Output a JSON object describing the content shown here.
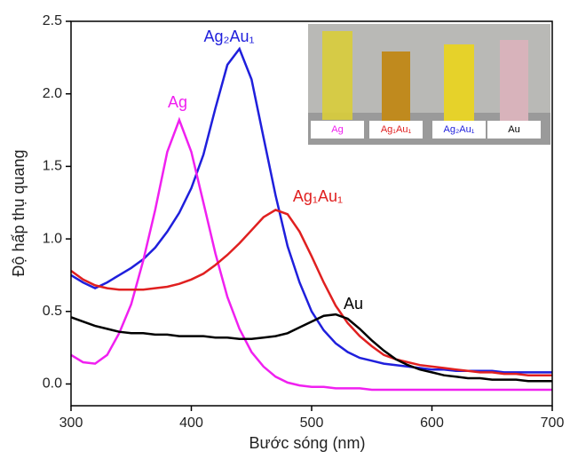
{
  "chart_data": {
    "type": "line",
    "x_label": "Bước sóng (nm)",
    "y_label": "Độ hấp thụ quang",
    "x": [
      300,
      310,
      320,
      330,
      340,
      350,
      360,
      370,
      380,
      390,
      400,
      410,
      420,
      430,
      440,
      450,
      460,
      470,
      480,
      490,
      500,
      510,
      520,
      530,
      540,
      550,
      560,
      570,
      580,
      590,
      600,
      610,
      620,
      630,
      640,
      650,
      660,
      670,
      680,
      690,
      700
    ],
    "series": [
      {
        "name": "Ag₂Au₁",
        "color": "#1f1fdc",
        "values": [
          0.75,
          0.7,
          0.66,
          0.7,
          0.75,
          0.8,
          0.86,
          0.94,
          1.05,
          1.18,
          1.35,
          1.58,
          1.9,
          2.2,
          2.31,
          2.1,
          1.7,
          1.3,
          0.95,
          0.7,
          0.5,
          0.37,
          0.28,
          0.22,
          0.18,
          0.16,
          0.14,
          0.13,
          0.12,
          0.11,
          0.1,
          0.1,
          0.09,
          0.09,
          0.09,
          0.09,
          0.08,
          0.08,
          0.08,
          0.08,
          0.08
        ]
      },
      {
        "name": "Ag",
        "color": "#f020f0",
        "values": [
          0.2,
          0.15,
          0.14,
          0.2,
          0.35,
          0.55,
          0.85,
          1.2,
          1.6,
          1.82,
          1.6,
          1.25,
          0.9,
          0.6,
          0.38,
          0.22,
          0.12,
          0.05,
          0.01,
          -0.01,
          -0.02,
          -0.02,
          -0.03,
          -0.03,
          -0.03,
          -0.04,
          -0.04,
          -0.04,
          -0.04,
          -0.04,
          -0.04,
          -0.04,
          -0.04,
          -0.04,
          -0.04,
          -0.04,
          -0.04,
          -0.04,
          -0.04,
          -0.04,
          -0.04
        ]
      },
      {
        "name": "Ag₁Au₁",
        "color": "#e02020",
        "values": [
          0.78,
          0.72,
          0.68,
          0.66,
          0.65,
          0.65,
          0.65,
          0.66,
          0.67,
          0.69,
          0.72,
          0.76,
          0.82,
          0.89,
          0.97,
          1.06,
          1.15,
          1.2,
          1.17,
          1.05,
          0.88,
          0.7,
          0.54,
          0.42,
          0.33,
          0.26,
          0.2,
          0.17,
          0.15,
          0.13,
          0.12,
          0.11,
          0.1,
          0.09,
          0.08,
          0.08,
          0.07,
          0.07,
          0.06,
          0.06,
          0.06
        ]
      },
      {
        "name": "Au",
        "color": "#000000",
        "values": [
          0.46,
          0.43,
          0.4,
          0.38,
          0.36,
          0.35,
          0.35,
          0.34,
          0.34,
          0.33,
          0.33,
          0.33,
          0.32,
          0.32,
          0.31,
          0.31,
          0.32,
          0.33,
          0.35,
          0.39,
          0.43,
          0.47,
          0.48,
          0.45,
          0.38,
          0.3,
          0.23,
          0.17,
          0.13,
          0.1,
          0.08,
          0.06,
          0.05,
          0.04,
          0.04,
          0.03,
          0.03,
          0.03,
          0.02,
          0.02,
          0.02
        ]
      }
    ],
    "xlim": [
      300,
      700
    ],
    "xticks": [
      300,
      400,
      500,
      600,
      700
    ],
    "ylim": [
      -0.15,
      2.5
    ],
    "yticks": [
      {
        "value": 0,
        "label": "0.0"
      },
      0.5,
      {
        "value": 1,
        "label": "1.0"
      },
      1.5,
      {
        "value": 2,
        "label": "2.0"
      },
      2.5
    ],
    "inset_labels": [
      {
        "text": "Ag",
        "color": "#f020f0"
      },
      {
        "text": "Ag₁Au₁",
        "color": "#e02020"
      },
      {
        "text": "Ag₂Au₁",
        "color": "#1f1fdc"
      },
      {
        "text": "Au",
        "color": "#000000"
      }
    ]
  }
}
